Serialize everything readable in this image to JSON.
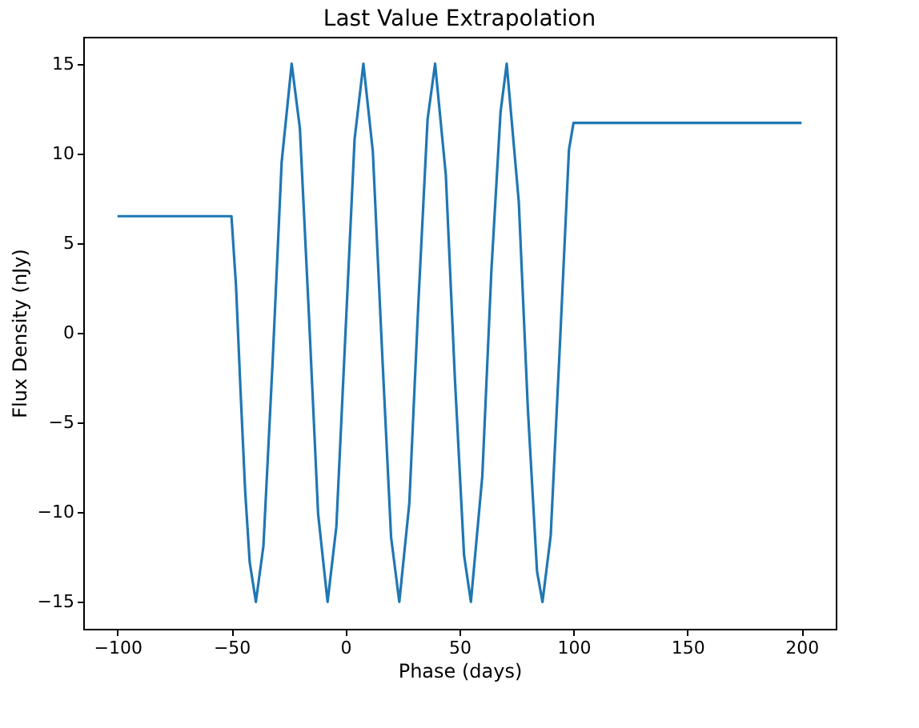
{
  "chart_data": {
    "type": "line",
    "title": "Last Value Extrapolation",
    "xlabel": "Phase (days)",
    "ylabel": "Flux Density (nJy)",
    "x": [
      -100,
      -50,
      -48,
      -46,
      -44,
      -42,
      -39.3,
      -36,
      -32,
      -28,
      -23.6,
      -20,
      -16,
      -12,
      -7.85,
      -4,
      0,
      4,
      7.85,
      12,
      16,
      20,
      23.6,
      28,
      32,
      36,
      39.3,
      44,
      48,
      52,
      55,
      60,
      64,
      68,
      70.7,
      76,
      80,
      84,
      86.4,
      90,
      94,
      98,
      100,
      200
    ],
    "series": [
      {
        "color": "#1f77b4",
        "values": [
          6.5,
          6.5,
          2.6,
          -3.3,
          -8.8,
          -12.8,
          -15,
          -11.9,
          -1.75,
          9.5,
          15,
          11.4,
          0.9,
          -10.1,
          -15,
          -10.8,
          0,
          10.8,
          15,
          10.1,
          -0.9,
          -11.4,
          -15,
          -9.5,
          1.75,
          11.9,
          15,
          8.8,
          -2.6,
          -12.4,
          -15,
          -8.0,
          3.5,
          12.3,
          15,
          7.3,
          -4.3,
          -13.3,
          -15,
          -11.3,
          -0.75,
          10.2,
          11.7,
          11.7
        ]
      }
    ],
    "xlim": [
      -115,
      215
    ],
    "xticks": [
      -100,
      -50,
      0,
      50,
      100,
      150,
      200
    ],
    "ylim": [
      -16.5,
      16.5
    ],
    "yticks": [
      -15,
      -10,
      -5,
      0,
      5,
      10,
      15
    ],
    "grid": false,
    "legend": false,
    "line_style": "solid"
  }
}
